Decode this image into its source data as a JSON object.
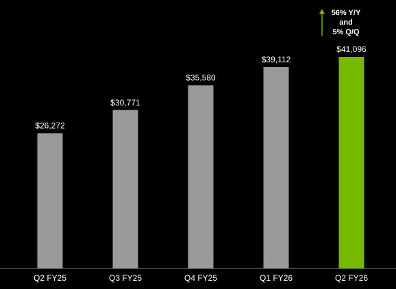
{
  "chart_data": {
    "type": "bar",
    "annotation": [
      "56% Y/Y",
      "and",
      "5% Q/Q"
    ],
    "annotation_color": "#76b900",
    "categories": [
      "Q2 FY25",
      "Q3 FY25",
      "Q4 FY25",
      "Q1 FY26",
      "Q2 FY26"
    ],
    "values": [
      26272,
      30771,
      35580,
      39112,
      41096
    ],
    "value_labels": [
      "$26,272",
      "$30,771",
      "$35,580",
      "$39,112",
      "$41,096"
    ],
    "colors": [
      "#9a9a9a",
      "#9a9a9a",
      "#9a9a9a",
      "#9a9a9a",
      "#76b900"
    ]
  }
}
